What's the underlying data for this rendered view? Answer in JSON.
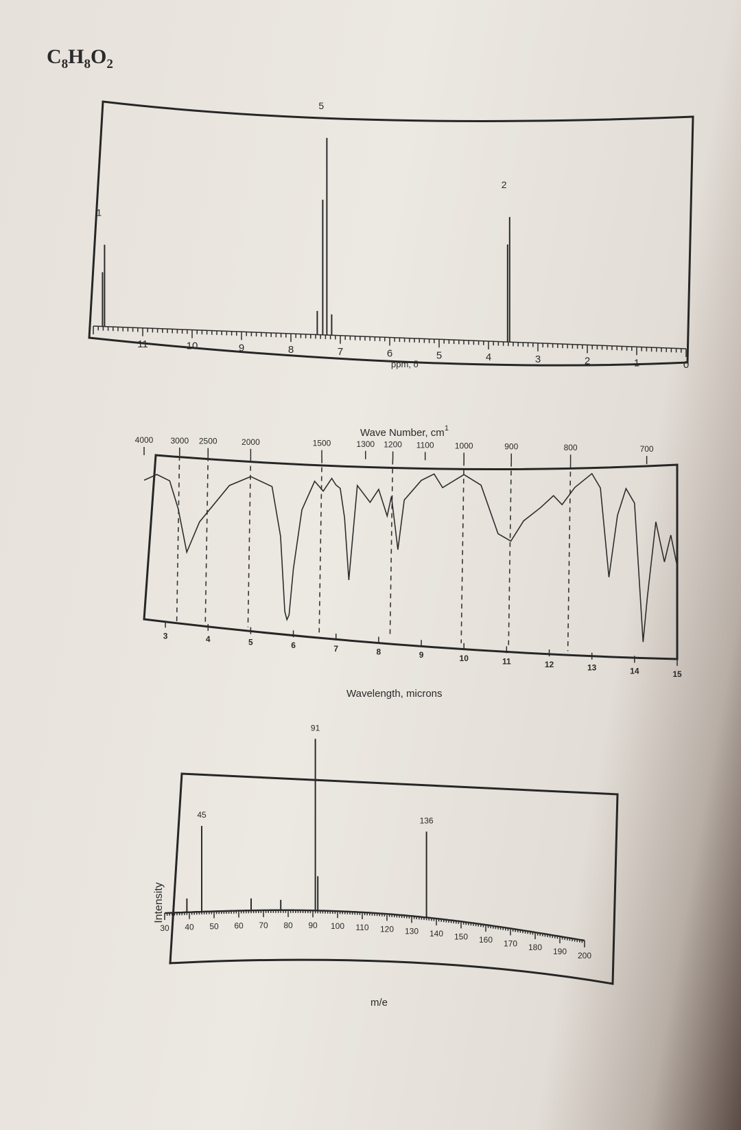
{
  "formula": {
    "element_1": "C",
    "sub_1": "8",
    "element_2": "H",
    "sub_2": "8",
    "element_3": "O",
    "sub_3": "2"
  },
  "chart_data": [
    {
      "type": "line",
      "xlabel": "ppm, δ",
      "x_ticks": [
        "11",
        "10",
        "9",
        "8",
        "7",
        "6",
        "5",
        "4",
        "3",
        "2",
        "1",
        "0"
      ],
      "xlim": [
        12,
        0
      ],
      "peaks": [
        {
          "shift": 11.8,
          "integration": "1",
          "height": 0.34
        },
        {
          "shift": 7.3,
          "integration": "5",
          "height": 0.82
        },
        {
          "shift": 3.6,
          "integration": "2",
          "height": 0.52
        }
      ]
    },
    {
      "type": "line",
      "top_axis_label": "Wave Number, cm",
      "top_axis_superscript": "1",
      "top_ticks": [
        "4000",
        "3000",
        "2500",
        "2000",
        "1500",
        "1300",
        "1200",
        "1100",
        "1000",
        "900",
        "800",
        "700"
      ],
      "xlabel": "Wavelength, microns",
      "bottom_ticks": [
        "3",
        "4",
        "5",
        "6",
        "7",
        "8",
        "9",
        "10",
        "11",
        "12",
        "13",
        "14",
        "15"
      ],
      "xlim": [
        2.5,
        15
      ],
      "x": [
        2.5,
        2.8,
        3.1,
        3.3,
        3.5,
        3.8,
        4.5,
        5.0,
        5.5,
        5.7,
        5.8,
        5.85,
        5.9,
        6.0,
        6.2,
        6.5,
        6.7,
        6.9,
        7.0,
        7.1,
        7.2,
        7.3,
        7.5,
        7.8,
        8.0,
        8.2,
        8.3,
        8.45,
        8.6,
        9.0,
        9.3,
        9.5,
        10.0,
        10.4,
        10.8,
        11.1,
        11.4,
        11.8,
        12.1,
        12.3,
        12.6,
        13.0,
        13.2,
        13.4,
        13.6,
        13.8,
        14.0,
        14.2,
        14.3,
        14.5,
        14.7,
        14.85,
        15.0
      ],
      "y": [
        88,
        92,
        88,
        70,
        42,
        62,
        86,
        92,
        86,
        55,
        8,
        3,
        6,
        35,
        72,
        90,
        84,
        92,
        88,
        86,
        68,
        30,
        88,
        78,
        86,
        70,
        82,
        50,
        80,
        92,
        96,
        88,
        96,
        90,
        62,
        58,
        70,
        78,
        85,
        80,
        90,
        98,
        90,
        40,
        75,
        90,
        82,
        5,
        30,
        72,
        50,
        65,
        48
      ]
    },
    {
      "type": "bar",
      "ylabel": "Intensity",
      "xlabel": "m/e",
      "x_ticks": [
        "30",
        "40",
        "50",
        "60",
        "70",
        "80",
        "90",
        "100",
        "110",
        "120",
        "130",
        "140",
        "150",
        "160",
        "170",
        "180",
        "190",
        "200"
      ],
      "xlim": [
        30,
        200
      ],
      "peaks": [
        {
          "mz": 39,
          "intensity": 8,
          "label": ""
        },
        {
          "mz": 45,
          "intensity": 50,
          "label": "45"
        },
        {
          "mz": 65,
          "intensity": 7,
          "label": ""
        },
        {
          "mz": 77,
          "intensity": 6,
          "label": ""
        },
        {
          "mz": 91,
          "intensity": 100,
          "label": "91"
        },
        {
          "mz": 92,
          "intensity": 20,
          "label": ""
        },
        {
          "mz": 136,
          "intensity": 50,
          "label": "136"
        }
      ]
    }
  ]
}
